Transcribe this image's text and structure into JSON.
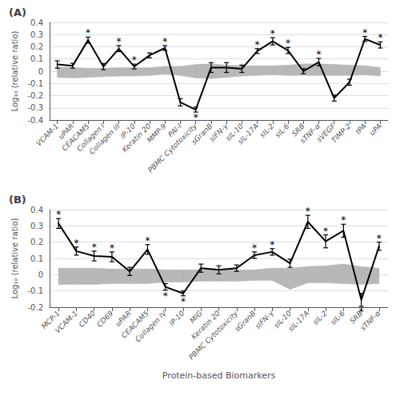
{
  "chart_data": [
    {
      "type": "line",
      "title": "(A)",
      "ylabel": "Log₁₀ (relative ratio)",
      "categories": [
        "VCAM-1",
        "uPAR",
        "CEACAM5",
        "Collagen I",
        "Collagen III",
        "IP-10",
        "Keratin 20",
        "MMP-9",
        "PAI-I",
        "PBMC Cytotoxicity",
        "sGranB",
        "sIFN-γ",
        "sIL-10",
        "sIL-17A",
        "sIL-2",
        "sIL-6",
        "SRB",
        "sTNF-α",
        "sVEGF",
        "TIMP-2",
        "tPA",
        "uPA"
      ],
      "values": [
        0.055,
        0.045,
        0.255,
        0.038,
        0.185,
        0.038,
        0.13,
        0.19,
        -0.255,
        -0.315,
        0.03,
        0.03,
        0.02,
        0.165,
        0.245,
        0.17,
        0.0,
        0.075,
        -0.22,
        -0.09,
        0.265,
        0.215
      ],
      "errors": [
        0.03,
        0.02,
        0.025,
        0.025,
        0.025,
        0.02,
        0.02,
        0.02,
        0.03,
        0.02,
        0.04,
        0.04,
        0.03,
        0.02,
        0.03,
        0.025,
        0.02,
        0.03,
        0.025,
        0.025,
        0.02,
        0.025
      ],
      "color": "#000000",
      "shade": {
        "upper": [
          0.035,
          0.03,
          0.025,
          0.025,
          0.03,
          0.03,
          0.03,
          0.04,
          0.04,
          0.055,
          0.06,
          0.05,
          0.045,
          0.045,
          0.045,
          0.05,
          0.06,
          0.06,
          0.055,
          0.05,
          0.045,
          0.03
        ],
        "lower": [
          -0.05,
          -0.055,
          -0.05,
          -0.045,
          -0.04,
          -0.04,
          -0.035,
          -0.025,
          -0.035,
          -0.055,
          -0.06,
          -0.05,
          -0.04,
          -0.035,
          -0.03,
          -0.035,
          -0.035,
          -0.035,
          -0.035,
          -0.035,
          -0.03,
          -0.04
        ],
        "color": "#b0b0b0"
      },
      "annotations": [
        {
          "category": "CEACAM5",
          "text": "*"
        },
        {
          "category": "Collagen III",
          "text": "*"
        },
        {
          "category": "IP-10",
          "text": "*"
        },
        {
          "category": "MMP-9",
          "text": "*"
        },
        {
          "category": "PBMC Cytotoxicity",
          "text": "*"
        },
        {
          "category": "sIL-17A",
          "text": "*"
        },
        {
          "category": "sIL-2",
          "text": "*"
        },
        {
          "category": "sIL-6",
          "text": "*"
        },
        {
          "category": "sTNF-α",
          "text": "*"
        },
        {
          "category": "tPA",
          "text": "*"
        },
        {
          "category": "uPA",
          "text": "*"
        }
      ],
      "ylim": [
        -0.4,
        0.4
      ],
      "yticks": [
        -0.4,
        -0.3,
        -0.2,
        -0.1,
        0,
        0.1,
        0.2,
        0.3,
        0.4
      ],
      "grid": true
    },
    {
      "type": "line",
      "title": "(B)",
      "ylabel": "Log₁₀ (relative ratio)",
      "xlabel": "Protein-based Biomarkers",
      "categories": [
        "MCP-1",
        "VCAM-1",
        "CD40",
        "CD69",
        "uPAR",
        "CEACAM5",
        "Collagen IV",
        "IP-10",
        "MIG",
        "Keratin 20",
        "PBMC Cytotoxicity",
        "sGranB",
        "sIFN-γ",
        "sIL-10",
        "sIL-17A",
        "sIL-2",
        "sIL-6",
        "SRB",
        "sTNF-α"
      ],
      "values": [
        0.315,
        0.145,
        0.115,
        0.11,
        0.02,
        0.155,
        -0.075,
        -0.115,
        0.04,
        0.03,
        0.04,
        0.12,
        0.14,
        0.07,
        0.325,
        0.205,
        0.27,
        -0.155,
        0.175
      ],
      "errors": [
        0.03,
        0.025,
        0.03,
        0.03,
        0.025,
        0.03,
        0.02,
        0.015,
        0.025,
        0.025,
        0.02,
        0.02,
        0.02,
        0.025,
        0.04,
        0.04,
        0.04,
        0.04,
        0.025
      ],
      "color": "#000000",
      "shade": {
        "upper": [
          0.04,
          0.04,
          0.04,
          0.035,
          0.035,
          0.035,
          0.03,
          0.03,
          0.03,
          0.03,
          0.03,
          0.03,
          0.04,
          0.04,
          0.05,
          0.055,
          0.065,
          0.05,
          0.04
        ],
        "lower": [
          -0.06,
          -0.06,
          -0.06,
          -0.055,
          -0.055,
          -0.055,
          -0.045,
          -0.045,
          -0.04,
          -0.04,
          -0.04,
          -0.035,
          -0.035,
          -0.09,
          -0.05,
          -0.05,
          -0.055,
          -0.06,
          -0.055
        ],
        "color": "#b0b0b0"
      },
      "annotations": [
        {
          "category": "MCP-1",
          "text": "*"
        },
        {
          "category": "VCAM-1",
          "text": "*"
        },
        {
          "category": "CD40",
          "text": "*"
        },
        {
          "category": "CD69",
          "text": "*"
        },
        {
          "category": "CEACAM5",
          "text": "*"
        },
        {
          "category": "Collagen IV",
          "text": "*"
        },
        {
          "category": "IP-10",
          "text": "*"
        },
        {
          "category": "sGranB",
          "text": "*"
        },
        {
          "category": "sIFN-γ",
          "text": "*"
        },
        {
          "category": "sIL-17A",
          "text": "*"
        },
        {
          "category": "sIL-2",
          "text": "*"
        },
        {
          "category": "sIL-6",
          "text": "*"
        },
        {
          "category": "SRB",
          "text": "*"
        },
        {
          "category": "sTNF-α",
          "text": "*"
        }
      ],
      "ylim": [
        -0.2,
        0.4
      ],
      "yticks": [
        -0.2,
        -0.1,
        0,
        0.1,
        0.2,
        0.3,
        0.4
      ],
      "grid": true
    }
  ]
}
